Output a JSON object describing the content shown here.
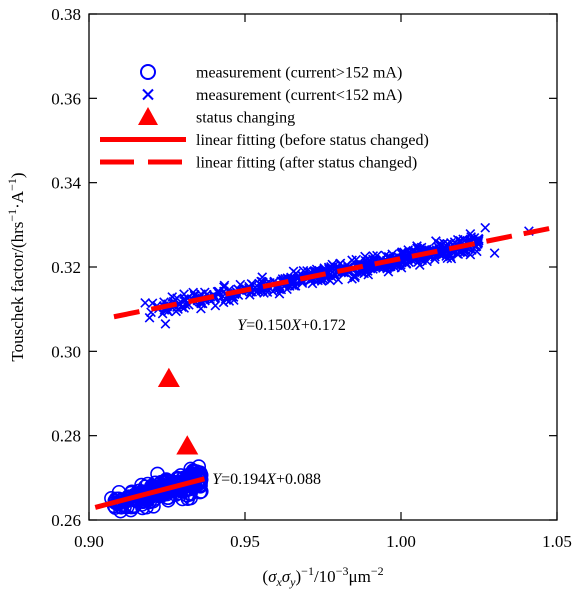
{
  "chart_data": {
    "type": "scatter",
    "xlabel_parts": [
      "(",
      "σ",
      "x",
      "σ",
      "y",
      ")",
      "−1",
      "/10",
      "−3",
      "μm",
      "−2"
    ],
    "ylabel_parts": [
      "Touschek factor/(hrs",
      "−1",
      "·A",
      "−1",
      ")"
    ],
    "xlim": [
      0.9,
      1.05
    ],
    "ylim": [
      0.26,
      0.38
    ],
    "x_ticks": [
      0.9,
      0.95,
      1.0,
      1.05
    ],
    "x_tick_labels": [
      "0.90",
      "0.95",
      "1.00",
      "1.05"
    ],
    "y_ticks": [
      0.26,
      0.28,
      0.3,
      0.32,
      0.34,
      0.36,
      0.38
    ],
    "y_tick_labels": [
      "0.26",
      "0.28",
      "0.30",
      "0.32",
      "0.34",
      "0.36",
      "0.38"
    ],
    "grid": false,
    "legend_placement": "top-left",
    "colors": {
      "blue": "#0000ff",
      "red": "#ff0000"
    },
    "series": [
      {
        "name": "measurement (current>152 mA)",
        "marker": "circle",
        "color": "#0000ff",
        "clusters": [
          {
            "x_range": [
              0.9065,
              0.936
            ],
            "trend": [
              0.194,
              0.088
            ],
            "spread": 0.003,
            "count": 260
          }
        ]
      },
      {
        "name": "measurement (current<152 mA)",
        "marker": "x",
        "color": "#0000ff",
        "clusters": [
          {
            "x_range": [
              0.918,
              1.025
            ],
            "trend": [
              0.15,
              0.172
            ],
            "spread": 0.002,
            "count": 520
          }
        ],
        "outliers": [
          [
            0.9245,
            0.3065
          ],
          [
            1.041,
            0.3285
          ],
          [
            1.03,
            0.3233
          ],
          [
            1.027,
            0.3293
          ],
          [
            0.918,
            0.3115
          ]
        ]
      },
      {
        "name": "status changing",
        "marker": "triangle",
        "color": "#ff0000",
        "points": [
          [
            0.9256,
            0.2935
          ],
          [
            0.9315,
            0.2775
          ]
        ]
      },
      {
        "name": "linear fitting (before status changed)",
        "line": "solid",
        "color": "#ff0000",
        "slope": 0.194,
        "intercept": 0.088,
        "x_range": [
          0.902,
          0.937
        ]
      },
      {
        "name": "linear fitting (after status changed)",
        "line": "dashed",
        "color": "#ff0000",
        "slope": 0.15,
        "intercept": 0.172,
        "x_range": [
          0.908,
          1.05
        ]
      }
    ],
    "annotations": [
      {
        "var": "Y",
        "mid": "=0.150",
        "var2": "X",
        "tail": "+0.172",
        "x": 0.9475,
        "y": 0.3051
      },
      {
        "var": "Y",
        "mid": "=0.194",
        "var2": "X",
        "tail": "+0.088",
        "x": 0.9395,
        "y": 0.2685
      }
    ]
  }
}
